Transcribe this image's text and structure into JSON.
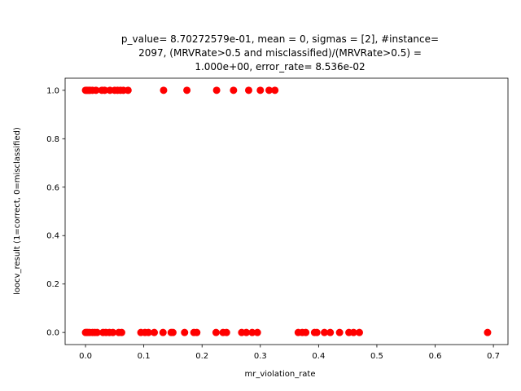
{
  "chart_data": {
    "type": "scatter",
    "title_lines": [
      "p_value= 8.70272579e-01, mean = 0, sigmas = [2], #instance=",
      "2097, (MRVRate>0.5 and misclassified)/(MRVRate>0.5) =",
      "1.000e+00, error_rate= 8.536e-02"
    ],
    "xlabel": "mr_violation_rate",
    "ylabel": "loocv_result (1=correct, 0=misclassified)",
    "xlim": [
      -0.035,
      0.725
    ],
    "ylim": [
      -0.05,
      1.05
    ],
    "xticks": [
      0.0,
      0.1,
      0.2,
      0.3,
      0.4,
      0.5,
      0.6,
      0.7
    ],
    "xtick_labels": [
      "0.0",
      "0.1",
      "0.2",
      "0.3",
      "0.4",
      "0.5",
      "0.6",
      "0.7"
    ],
    "yticks": [
      0.0,
      0.2,
      0.4,
      0.6,
      0.8,
      1.0
    ],
    "ytick_labels": [
      "0.0",
      "0.2",
      "0.4",
      "0.6",
      "0.8",
      "1.0"
    ],
    "marker_color": "#ff0000",
    "grid": false,
    "points": [
      {
        "x": 0.0,
        "y": 1
      },
      {
        "x": 0.002,
        "y": 1
      },
      {
        "x": 0.004,
        "y": 1
      },
      {
        "x": 0.006,
        "y": 1
      },
      {
        "x": 0.008,
        "y": 1
      },
      {
        "x": 0.012,
        "y": 1
      },
      {
        "x": 0.018,
        "y": 1
      },
      {
        "x": 0.028,
        "y": 1
      },
      {
        "x": 0.033,
        "y": 1
      },
      {
        "x": 0.042,
        "y": 1
      },
      {
        "x": 0.05,
        "y": 1
      },
      {
        "x": 0.055,
        "y": 1
      },
      {
        "x": 0.06,
        "y": 1
      },
      {
        "x": 0.065,
        "y": 1
      },
      {
        "x": 0.073,
        "y": 1
      },
      {
        "x": 0.134,
        "y": 1
      },
      {
        "x": 0.174,
        "y": 1
      },
      {
        "x": 0.225,
        "y": 1
      },
      {
        "x": 0.254,
        "y": 1
      },
      {
        "x": 0.28,
        "y": 1
      },
      {
        "x": 0.3,
        "y": 1
      },
      {
        "x": 0.315,
        "y": 1
      },
      {
        "x": 0.325,
        "y": 1
      },
      {
        "x": 0.0,
        "y": 0
      },
      {
        "x": 0.002,
        "y": 0
      },
      {
        "x": 0.004,
        "y": 0
      },
      {
        "x": 0.007,
        "y": 0
      },
      {
        "x": 0.012,
        "y": 0
      },
      {
        "x": 0.016,
        "y": 0
      },
      {
        "x": 0.02,
        "y": 0
      },
      {
        "x": 0.03,
        "y": 0
      },
      {
        "x": 0.035,
        "y": 0
      },
      {
        "x": 0.041,
        "y": 0
      },
      {
        "x": 0.047,
        "y": 0
      },
      {
        "x": 0.057,
        "y": 0
      },
      {
        "x": 0.062,
        "y": 0
      },
      {
        "x": 0.095,
        "y": 0
      },
      {
        "x": 0.102,
        "y": 0
      },
      {
        "x": 0.108,
        "y": 0
      },
      {
        "x": 0.118,
        "y": 0
      },
      {
        "x": 0.133,
        "y": 0
      },
      {
        "x": 0.147,
        "y": 0
      },
      {
        "x": 0.15,
        "y": 0
      },
      {
        "x": 0.17,
        "y": 0
      },
      {
        "x": 0.186,
        "y": 0
      },
      {
        "x": 0.191,
        "y": 0
      },
      {
        "x": 0.224,
        "y": 0
      },
      {
        "x": 0.236,
        "y": 0
      },
      {
        "x": 0.242,
        "y": 0
      },
      {
        "x": 0.268,
        "y": 0
      },
      {
        "x": 0.276,
        "y": 0
      },
      {
        "x": 0.286,
        "y": 0
      },
      {
        "x": 0.295,
        "y": 0
      },
      {
        "x": 0.365,
        "y": 0
      },
      {
        "x": 0.372,
        "y": 0
      },
      {
        "x": 0.378,
        "y": 0
      },
      {
        "x": 0.393,
        "y": 0
      },
      {
        "x": 0.397,
        "y": 0
      },
      {
        "x": 0.41,
        "y": 0
      },
      {
        "x": 0.42,
        "y": 0
      },
      {
        "x": 0.436,
        "y": 0
      },
      {
        "x": 0.452,
        "y": 0
      },
      {
        "x": 0.46,
        "y": 0
      },
      {
        "x": 0.47,
        "y": 0
      },
      {
        "x": 0.69,
        "y": 0
      }
    ]
  }
}
